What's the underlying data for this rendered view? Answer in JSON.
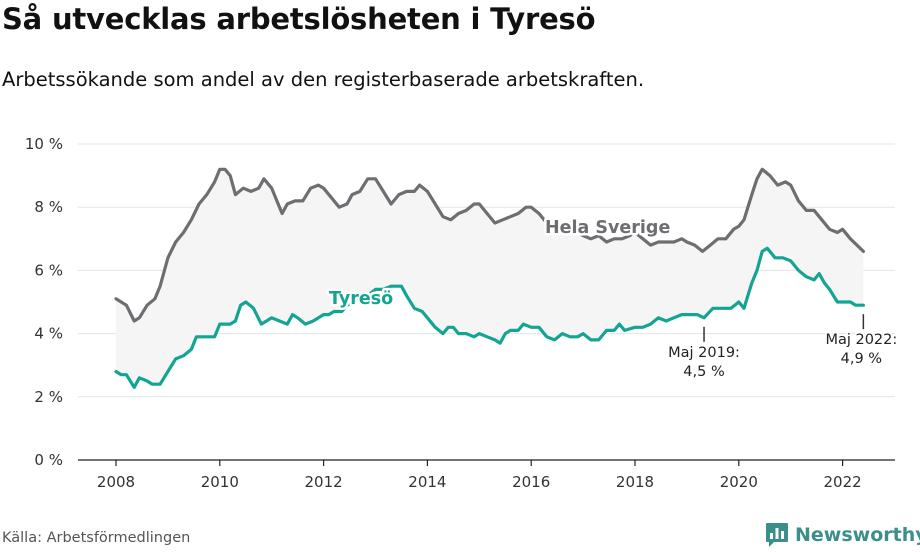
{
  "header": {
    "title": "Så utvecklas arbetslösheten i Tyresö",
    "subtitle": "Arbetssökande som andel av den registerbaserade arbetskraften."
  },
  "footer": {
    "source": "Källa: Arbetsförmedlingen",
    "brand": "Newsworthy"
  },
  "colors": {
    "sweden": "#6e6e72",
    "tyreso": "#14a494",
    "band": "#f5f5f5",
    "grid": "#e4e4e4",
    "axis": "#222222",
    "brand": "#3b8f8a"
  },
  "chart_data": {
    "type": "line",
    "title": "Så utvecklas arbetslösheten i Tyresö",
    "subtitle": "Arbetssökande som andel av den registerbaserade arbetskraften.",
    "xlabel": "",
    "ylabel": "",
    "xlim": [
      2008,
      2022.4
    ],
    "ylim": [
      0,
      10
    ],
    "y_ticks": [
      0,
      2,
      4,
      6,
      8,
      10
    ],
    "y_tick_labels": [
      "0 %",
      "2 %",
      "4 %",
      "6 %",
      "8 %",
      "10 %"
    ],
    "x_ticks": [
      2008,
      2010,
      2012,
      2014,
      2016,
      2018,
      2020,
      2022
    ],
    "x_tick_labels": [
      "2008",
      "2010",
      "2012",
      "2014",
      "2016",
      "2018",
      "2020",
      "2022"
    ],
    "grid": "horizontal",
    "legend": "direct labels",
    "series": [
      {
        "name": "Hela Sverige",
        "color": "#6e6e72",
        "points": [
          [
            2008.0,
            5.1
          ],
          [
            2008.2,
            4.9
          ],
          [
            2008.35,
            4.4
          ],
          [
            2008.45,
            4.5
          ],
          [
            2008.6,
            4.9
          ],
          [
            2008.75,
            5.1
          ],
          [
            2008.85,
            5.5
          ],
          [
            2009.0,
            6.4
          ],
          [
            2009.15,
            6.9
          ],
          [
            2009.3,
            7.2
          ],
          [
            2009.45,
            7.6
          ],
          [
            2009.6,
            8.1
          ],
          [
            2009.75,
            8.4
          ],
          [
            2009.9,
            8.8
          ],
          [
            2010.0,
            9.2
          ],
          [
            2010.1,
            9.2
          ],
          [
            2010.2,
            9.0
          ],
          [
            2010.3,
            8.4
          ],
          [
            2010.45,
            8.6
          ],
          [
            2010.6,
            8.5
          ],
          [
            2010.75,
            8.6
          ],
          [
            2010.85,
            8.9
          ],
          [
            2011.0,
            8.6
          ],
          [
            2011.1,
            8.2
          ],
          [
            2011.2,
            7.8
          ],
          [
            2011.3,
            8.1
          ],
          [
            2011.45,
            8.2
          ],
          [
            2011.6,
            8.2
          ],
          [
            2011.75,
            8.6
          ],
          [
            2011.9,
            8.7
          ],
          [
            2012.0,
            8.6
          ],
          [
            2012.15,
            8.3
          ],
          [
            2012.3,
            8.0
          ],
          [
            2012.45,
            8.1
          ],
          [
            2012.55,
            8.4
          ],
          [
            2012.7,
            8.5
          ],
          [
            2012.85,
            8.9
          ],
          [
            2013.0,
            8.9
          ],
          [
            2013.15,
            8.5
          ],
          [
            2013.3,
            8.1
          ],
          [
            2013.45,
            8.4
          ],
          [
            2013.6,
            8.5
          ],
          [
            2013.75,
            8.5
          ],
          [
            2013.85,
            8.7
          ],
          [
            2014.0,
            8.5
          ],
          [
            2014.15,
            8.1
          ],
          [
            2014.3,
            7.7
          ],
          [
            2014.45,
            7.6
          ],
          [
            2014.6,
            7.8
          ],
          [
            2014.75,
            7.9
          ],
          [
            2014.9,
            8.1
          ],
          [
            2015.0,
            8.1
          ],
          [
            2015.15,
            7.8
          ],
          [
            2015.3,
            7.5
          ],
          [
            2015.45,
            7.6
          ],
          [
            2015.6,
            7.7
          ],
          [
            2015.75,
            7.8
          ],
          [
            2015.9,
            8.0
          ],
          [
            2016.0,
            8.0
          ],
          [
            2016.15,
            7.8
          ],
          [
            2016.3,
            7.5
          ],
          [
            2016.45,
            7.6
          ],
          [
            2016.6,
            7.4
          ],
          [
            2016.75,
            7.5
          ],
          [
            2016.9,
            7.2
          ],
          [
            2017.0,
            7.1
          ],
          [
            2017.15,
            7.0
          ],
          [
            2017.3,
            7.1
          ],
          [
            2017.45,
            6.9
          ],
          [
            2017.6,
            7.0
          ],
          [
            2017.75,
            7.0
          ],
          [
            2017.9,
            7.1
          ],
          [
            2018.0,
            7.2
          ],
          [
            2018.15,
            7.0
          ],
          [
            2018.3,
            6.8
          ],
          [
            2018.45,
            6.9
          ],
          [
            2018.6,
            6.9
          ],
          [
            2018.75,
            6.9
          ],
          [
            2018.9,
            7.0
          ],
          [
            2019.0,
            6.9
          ],
          [
            2019.15,
            6.8
          ],
          [
            2019.3,
            6.6
          ],
          [
            2019.45,
            6.8
          ],
          [
            2019.6,
            7.0
          ],
          [
            2019.75,
            7.0
          ],
          [
            2019.9,
            7.3
          ],
          [
            2020.0,
            7.4
          ],
          [
            2020.1,
            7.6
          ],
          [
            2020.25,
            8.4
          ],
          [
            2020.35,
            8.9
          ],
          [
            2020.45,
            9.2
          ],
          [
            2020.6,
            9.0
          ],
          [
            2020.75,
            8.7
          ],
          [
            2020.9,
            8.8
          ],
          [
            2021.0,
            8.7
          ],
          [
            2021.15,
            8.2
          ],
          [
            2021.3,
            7.9
          ],
          [
            2021.45,
            7.9
          ],
          [
            2021.6,
            7.6
          ],
          [
            2021.75,
            7.3
          ],
          [
            2021.9,
            7.2
          ],
          [
            2022.0,
            7.3
          ],
          [
            2022.15,
            7.0
          ],
          [
            2022.4,
            6.6
          ]
        ]
      },
      {
        "name": "Tyresö",
        "color": "#14a494",
        "points": [
          [
            2008.0,
            2.8
          ],
          [
            2008.1,
            2.7
          ],
          [
            2008.2,
            2.7
          ],
          [
            2008.35,
            2.3
          ],
          [
            2008.45,
            2.6
          ],
          [
            2008.6,
            2.5
          ],
          [
            2008.7,
            2.4
          ],
          [
            2008.85,
            2.4
          ],
          [
            2009.0,
            2.8
          ],
          [
            2009.15,
            3.2
          ],
          [
            2009.3,
            3.3
          ],
          [
            2009.45,
            3.5
          ],
          [
            2009.55,
            3.9
          ],
          [
            2009.7,
            3.9
          ],
          [
            2009.9,
            3.9
          ],
          [
            2010.0,
            4.3
          ],
          [
            2010.2,
            4.3
          ],
          [
            2010.3,
            4.4
          ],
          [
            2010.4,
            4.9
          ],
          [
            2010.5,
            5.0
          ],
          [
            2010.65,
            4.8
          ],
          [
            2010.8,
            4.3
          ],
          [
            2010.9,
            4.4
          ],
          [
            2011.0,
            4.5
          ],
          [
            2011.15,
            4.4
          ],
          [
            2011.3,
            4.3
          ],
          [
            2011.4,
            4.6
          ],
          [
            2011.5,
            4.5
          ],
          [
            2011.65,
            4.3
          ],
          [
            2011.8,
            4.4
          ],
          [
            2012.0,
            4.6
          ],
          [
            2012.1,
            4.6
          ],
          [
            2012.2,
            4.7
          ],
          [
            2012.35,
            4.7
          ],
          [
            2012.45,
            4.9
          ],
          [
            2012.6,
            5.0
          ],
          [
            2012.7,
            5.2
          ],
          [
            2012.85,
            5.2
          ],
          [
            2013.0,
            5.4
          ],
          [
            2013.15,
            5.4
          ],
          [
            2013.3,
            5.5
          ],
          [
            2013.5,
            5.5
          ],
          [
            2013.6,
            5.2
          ],
          [
            2013.75,
            4.8
          ],
          [
            2013.9,
            4.7
          ],
          [
            2014.0,
            4.5
          ],
          [
            2014.15,
            4.2
          ],
          [
            2014.3,
            4.0
          ],
          [
            2014.4,
            4.2
          ],
          [
            2014.5,
            4.2
          ],
          [
            2014.6,
            4.0
          ],
          [
            2014.75,
            4.0
          ],
          [
            2014.9,
            3.9
          ],
          [
            2015.0,
            4.0
          ],
          [
            2015.15,
            3.9
          ],
          [
            2015.3,
            3.8
          ],
          [
            2015.4,
            3.7
          ],
          [
            2015.5,
            4.0
          ],
          [
            2015.6,
            4.1
          ],
          [
            2015.75,
            4.1
          ],
          [
            2015.85,
            4.3
          ],
          [
            2016.0,
            4.2
          ],
          [
            2016.15,
            4.2
          ],
          [
            2016.3,
            3.9
          ],
          [
            2016.45,
            3.8
          ],
          [
            2016.6,
            4.0
          ],
          [
            2016.75,
            3.9
          ],
          [
            2016.9,
            3.9
          ],
          [
            2017.0,
            4.0
          ],
          [
            2017.15,
            3.8
          ],
          [
            2017.3,
            3.8
          ],
          [
            2017.45,
            4.1
          ],
          [
            2017.6,
            4.1
          ],
          [
            2017.7,
            4.3
          ],
          [
            2017.8,
            4.1
          ],
          [
            2018.0,
            4.2
          ],
          [
            2018.15,
            4.2
          ],
          [
            2018.3,
            4.3
          ],
          [
            2018.45,
            4.5
          ],
          [
            2018.6,
            4.4
          ],
          [
            2018.75,
            4.5
          ],
          [
            2018.9,
            4.6
          ],
          [
            2019.0,
            4.6
          ],
          [
            2019.2,
            4.6
          ],
          [
            2019.33,
            4.5
          ],
          [
            2019.5,
            4.8
          ],
          [
            2019.6,
            4.8
          ],
          [
            2019.75,
            4.8
          ],
          [
            2019.85,
            4.8
          ],
          [
            2020.0,
            5.0
          ],
          [
            2020.1,
            4.8
          ],
          [
            2020.25,
            5.6
          ],
          [
            2020.35,
            6.0
          ],
          [
            2020.45,
            6.6
          ],
          [
            2020.55,
            6.7
          ],
          [
            2020.7,
            6.4
          ],
          [
            2020.85,
            6.4
          ],
          [
            2021.0,
            6.3
          ],
          [
            2021.15,
            6.0
          ],
          [
            2021.3,
            5.8
          ],
          [
            2021.45,
            5.7
          ],
          [
            2021.55,
            5.9
          ],
          [
            2021.65,
            5.6
          ],
          [
            2021.75,
            5.4
          ],
          [
            2021.9,
            5.0
          ],
          [
            2022.0,
            5.0
          ],
          [
            2022.15,
            5.0
          ],
          [
            2022.25,
            4.9
          ],
          [
            2022.4,
            4.9
          ]
        ]
      }
    ],
    "annotations": [
      {
        "x": 2019.33,
        "y": 4.5,
        "lines": [
          "Maj 2019:",
          "4,5 %"
        ]
      },
      {
        "x": 2022.4,
        "y": 4.9,
        "lines": [
          "Maj 2022:",
          "4,9 %"
        ]
      }
    ]
  }
}
